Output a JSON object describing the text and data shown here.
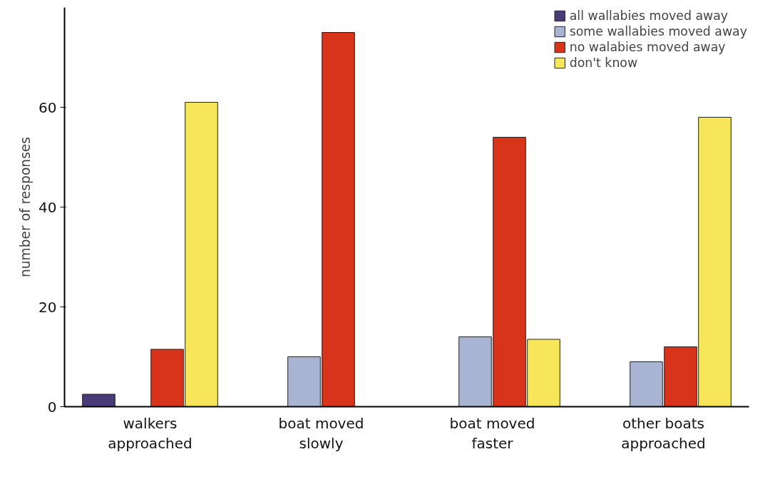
{
  "chart_data": {
    "type": "bar",
    "ylabel": "number of responses",
    "categories": [
      "walkers approached",
      "boat moved slowly",
      "boat moved faster",
      "other boats approached"
    ],
    "series": [
      {
        "name": "all wallabies moved away",
        "color": "#4a3a78",
        "values": [
          2.5,
          null,
          null,
          null
        ]
      },
      {
        "name": "some wallabies moved away",
        "color": "#a9b4d2",
        "values": [
          null,
          10,
          14,
          9
        ]
      },
      {
        "name": "no walabies moved away",
        "color": "#d8341c",
        "values": [
          11.5,
          75,
          54,
          12
        ]
      },
      {
        "name": "don't know",
        "color": "#f7e65a",
        "values": [
          61,
          null,
          13.5,
          58
        ]
      }
    ],
    "ylim": [
      0,
      80
    ],
    "yticks": [
      0,
      20,
      40,
      60
    ],
    "grid": false,
    "legend": "top right"
  }
}
